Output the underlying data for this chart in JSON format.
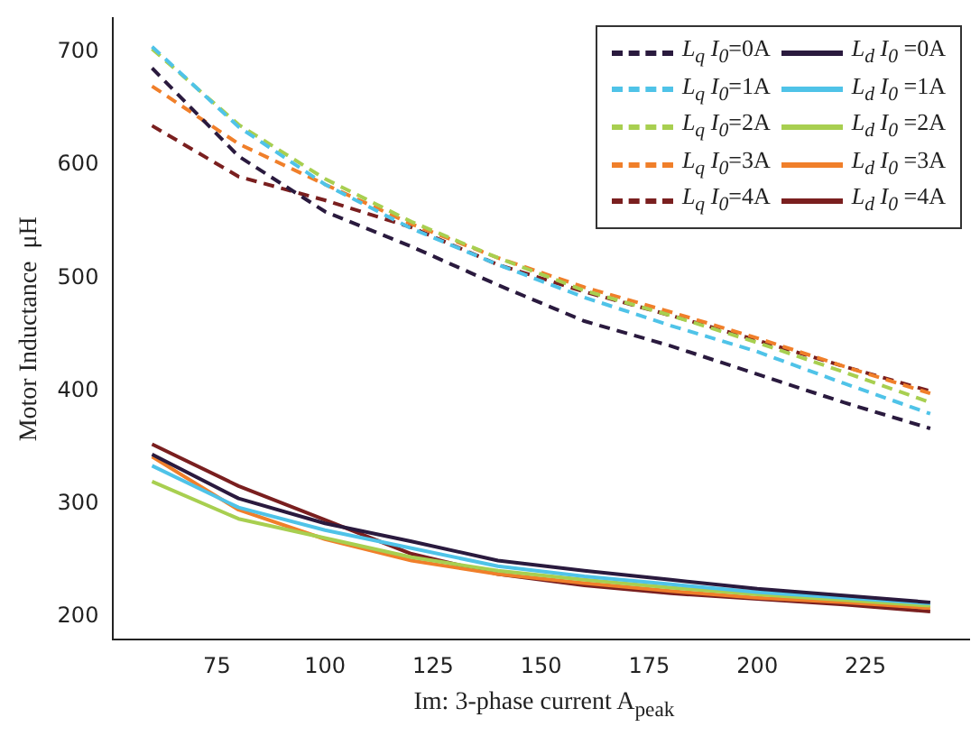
{
  "chart_data": {
    "type": "line",
    "xlabel": "Im: 3-phase current A$_{peak}$",
    "ylabel": "Motor Inductance  μH",
    "x": [
      60,
      80,
      100,
      120,
      140,
      160,
      180,
      200,
      220,
      240
    ],
    "xlim": [
      51,
      249
    ],
    "xticks": [
      75,
      100,
      125,
      150,
      175,
      200,
      225
    ],
    "ylim": [
      180,
      730
    ],
    "yticks": [
      200,
      300,
      400,
      500,
      600,
      700
    ],
    "legend": "top right",
    "series": [
      {
        "name": "L$_{q}$ I$_{0}$=0A",
        "color": "#2a1a3e",
        "line_style": "dashed",
        "values": [
          686,
          608,
          559,
          528,
          494,
          462,
          440,
          415,
          390,
          367
        ]
      },
      {
        "name": "L$_{q}$ I$_{0}$=1A",
        "color": "#4fc3e8",
        "line_style": "dashed",
        "values": [
          705,
          634,
          583,
          544,
          512,
          483,
          458,
          435,
          407,
          380
        ]
      },
      {
        "name": "L$_{q}$ I$_{0}$=2A",
        "color": "#a8cf50",
        "line_style": "dashed",
        "values": [
          703,
          636,
          588,
          550,
          518,
          489,
          467,
          443,
          417,
          390
        ]
      },
      {
        "name": "L$_{q}$ I$_{0}$=3A",
        "color": "#f07f2a",
        "line_style": "dashed",
        "values": [
          670,
          619,
          583,
          548,
          518,
          492,
          470,
          447,
          422,
          398
        ]
      },
      {
        "name": "L$_{q}$ I$_{0}$=4A",
        "color": "#7a1f1f",
        "line_style": "dashed",
        "values": [
          635,
          590,
          569,
          545,
          512,
          488,
          467,
          445,
          422,
          400
        ]
      },
      {
        "name": "L$_{d}$ I$_{0}$ =0A",
        "color": "#2a1a3e",
        "line_style": "solid",
        "values": [
          344,
          305,
          283,
          267,
          250,
          241,
          233,
          225,
          219,
          213
        ]
      },
      {
        "name": "L$_{d}$ I$_{0}$ =1A",
        "color": "#4fc3e8",
        "line_style": "solid",
        "values": [
          334,
          297,
          277,
          261,
          245,
          236,
          229,
          222,
          217,
          212
        ]
      },
      {
        "name": "L$_{d}$ I$_{0}$ =2A",
        "color": "#a8cf50",
        "line_style": "solid",
        "values": [
          320,
          287,
          270,
          253,
          241,
          233,
          226,
          220,
          215,
          210
        ]
      },
      {
        "name": "L$_{d}$ I$_{0}$ =3A",
        "color": "#f07f2a",
        "line_style": "solid",
        "values": [
          342,
          295,
          269,
          250,
          238,
          230,
          223,
          217,
          213,
          208
        ]
      },
      {
        "name": "L$_{d}$ I$_{0}$ =4A",
        "color": "#7a1f1f",
        "line_style": "solid",
        "values": [
          353,
          316,
          286,
          256,
          238,
          228,
          221,
          216,
          211,
          205
        ]
      }
    ]
  }
}
